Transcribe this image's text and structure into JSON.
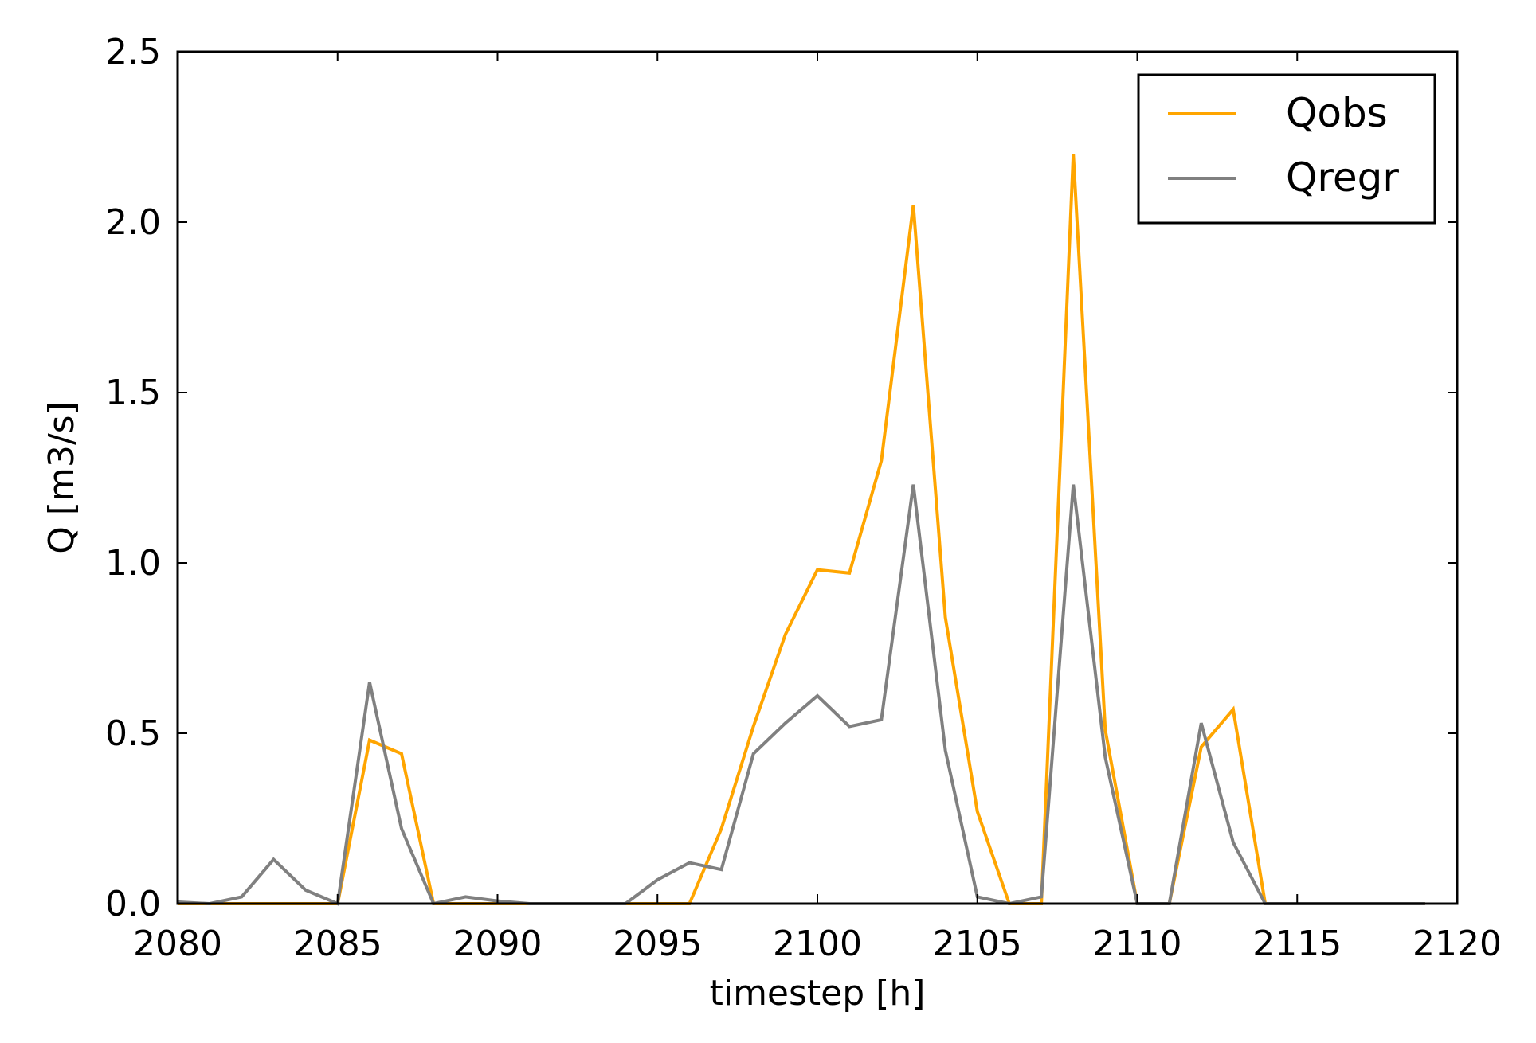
{
  "chart_data": {
    "type": "line",
    "xlabel": "timestep [h]",
    "ylabel": "Q [m3/s]",
    "xlim": [
      2080,
      2120
    ],
    "ylim": [
      0,
      2.5
    ],
    "xticks": [
      "2080",
      "2085",
      "2090",
      "2095",
      "2100",
      "2105",
      "2110",
      "2115",
      "2120"
    ],
    "yticks": [
      "0.0",
      "0.5",
      "1.0",
      "1.5",
      "2.0",
      "2.5"
    ],
    "legend_position": "top-right",
    "grid": false,
    "x": [
      2080,
      2081,
      2082,
      2083,
      2084,
      2085,
      2086,
      2087,
      2088,
      2089,
      2090,
      2091,
      2092,
      2093,
      2094,
      2095,
      2096,
      2097,
      2098,
      2099,
      2100,
      2101,
      2102,
      2103,
      2104,
      2105,
      2106,
      2107,
      2108,
      2109,
      2110,
      2111,
      2112,
      2113,
      2114,
      2115,
      2116,
      2117,
      2118,
      2119
    ],
    "series": [
      {
        "name": "Qobs",
        "color": "#ffa500",
        "values": [
          0,
          0,
          0,
          0,
          0,
          0,
          0.48,
          0.44,
          0,
          0,
          0,
          0,
          0,
          0,
          0,
          0,
          0,
          0.22,
          0.52,
          0.79,
          0.98,
          0.97,
          1.3,
          2.05,
          0.84,
          0.27,
          0,
          0,
          2.2,
          0.51,
          0,
          0,
          0.46,
          0.57,
          0,
          0,
          0,
          0,
          0,
          0
        ]
      },
      {
        "name": "Qregr",
        "color": "#808080",
        "values": [
          0.005,
          0,
          0.02,
          0.13,
          0.04,
          0,
          0.65,
          0.22,
          0,
          0.02,
          0.008,
          0,
          0,
          0,
          0,
          0.07,
          0.12,
          0.1,
          0.44,
          0.53,
          0.61,
          0.52,
          0.54,
          1.23,
          0.45,
          0.02,
          0,
          0.02,
          1.23,
          0.43,
          0,
          0,
          0.53,
          0.18,
          0,
          0,
          0,
          0,
          0,
          0
        ]
      }
    ]
  }
}
